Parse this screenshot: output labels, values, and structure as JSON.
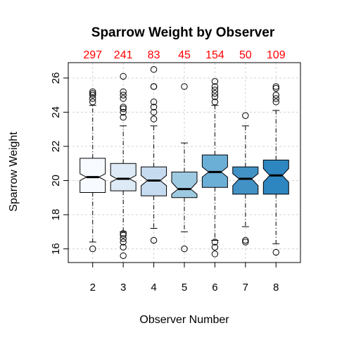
{
  "chart_data": {
    "type": "boxplot",
    "title": "Sparrow Weight by Observer",
    "xlabel": "Observer Number",
    "ylabel": "Sparrow Weight",
    "ylim": [
      15.2,
      26.9
    ],
    "y_ticks": [
      16,
      18,
      20,
      22,
      24,
      26
    ],
    "grid": true,
    "notched": true,
    "count_color": "#ff0000",
    "groups": [
      {
        "label": "2",
        "n": 297,
        "color": "#f7fbff",
        "lower_whisker": 16.4,
        "q1": 19.3,
        "median": 20.2,
        "q3": 21.3,
        "upper_whisker": 24.4,
        "notch": [
          20.0,
          20.4
        ],
        "outliers": [
          16.0,
          24.6,
          24.8,
          25.0,
          25.1,
          25.2
        ]
      },
      {
        "label": "3",
        "n": 241,
        "color": "#deebf7",
        "lower_whisker": 17.0,
        "q1": 19.4,
        "median": 20.1,
        "q3": 21.0,
        "upper_whisker": 23.2,
        "notch": [
          19.9,
          20.3
        ],
        "outliers": [
          15.6,
          16.1,
          16.4,
          16.6,
          16.8,
          16.9,
          23.7,
          24.0,
          24.2,
          24.3,
          24.8,
          25.0,
          25.2,
          26.1
        ]
      },
      {
        "label": "4",
        "n": 83,
        "color": "#c6dbef",
        "lower_whisker": 17.2,
        "q1": 19.1,
        "median": 20.0,
        "q3": 20.8,
        "upper_whisker": 23.2,
        "notch": [
          19.7,
          20.3
        ],
        "outliers": [
          16.5,
          23.6,
          24.0,
          24.3,
          24.6,
          25.5,
          25.5,
          26.5
        ]
      },
      {
        "label": "5",
        "n": 45,
        "color": "#9ecae1",
        "lower_whisker": 17.0,
        "q1": 19.0,
        "median": 19.5,
        "q3": 20.5,
        "upper_whisker": 22.2,
        "notch": [
          19.2,
          19.9
        ],
        "outliers": [
          16.0,
          25.5
        ]
      },
      {
        "label": "6",
        "n": 154,
        "color": "#6baed6",
        "lower_whisker": 16.5,
        "q1": 19.6,
        "median": 20.5,
        "q3": 21.5,
        "upper_whisker": 24.4,
        "notch": [
          20.2,
          20.8
        ],
        "outliers": [
          15.7,
          16.1,
          16.4,
          24.6,
          24.9,
          25.1,
          25.3,
          25.5,
          25.8
        ]
      },
      {
        "label": "7",
        "n": 50,
        "color": "#4292c6",
        "lower_whisker": 17.3,
        "q1": 19.2,
        "median": 20.1,
        "q3": 20.8,
        "upper_whisker": 23.2,
        "notch": [
          19.7,
          20.4
        ],
        "outliers": [
          16.4,
          16.5,
          23.8
        ]
      },
      {
        "label": "8",
        "n": 109,
        "color": "#2e86c1",
        "lower_whisker": 16.3,
        "q1": 19.2,
        "median": 20.3,
        "q3": 21.2,
        "upper_whisker": 24.1,
        "notch": [
          19.9,
          20.7
        ],
        "outliers": [
          15.8,
          24.6,
          24.8,
          25.0,
          25.4,
          25.5
        ]
      }
    ]
  }
}
